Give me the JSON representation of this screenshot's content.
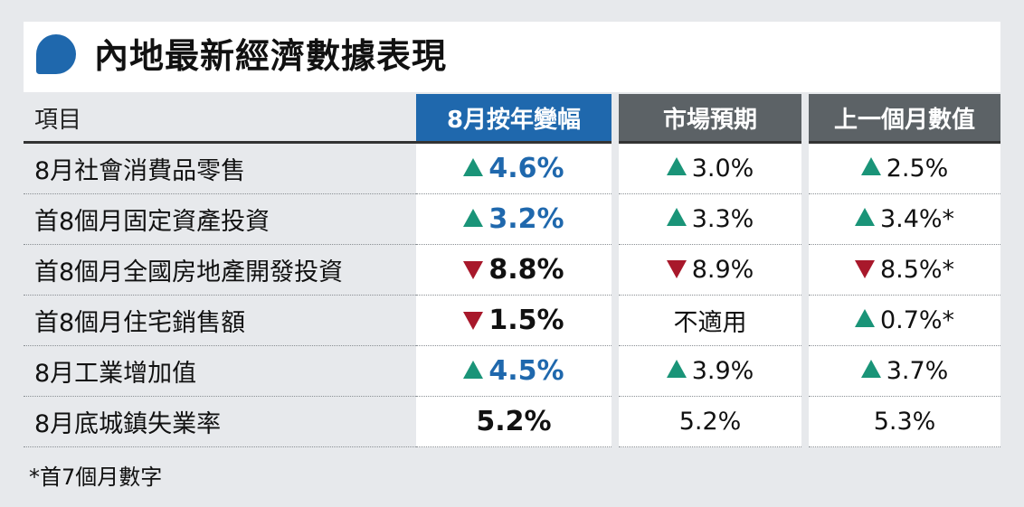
{
  "title": "內地最新經濟數據表現",
  "colors": {
    "accent_blue": "#1f68ad",
    "header_gray": "#5c6266",
    "up_green": "#1a9478",
    "down_red": "#a8182b"
  },
  "headers": {
    "item": "項目",
    "col1": "8月按年變幅",
    "col2": "市場預期",
    "col3": "上一個月數值"
  },
  "rows": [
    {
      "label": "8月社會消費品零售",
      "c1": {
        "dir": "up",
        "text": "4.6%"
      },
      "c2": {
        "dir": "up",
        "text": "3.0%"
      },
      "c3": {
        "dir": "up",
        "text": "2.5%"
      }
    },
    {
      "label": "首8個月固定資產投資",
      "c1": {
        "dir": "up",
        "text": "3.2%"
      },
      "c2": {
        "dir": "up",
        "text": "3.3%"
      },
      "c3": {
        "dir": "up",
        "text": "3.4%*"
      }
    },
    {
      "label": "首8個月全國房地產開發投資",
      "c1": {
        "dir": "down",
        "text": "8.8%"
      },
      "c2": {
        "dir": "down",
        "text": "8.9%"
      },
      "c3": {
        "dir": "down",
        "text": "8.5%*"
      }
    },
    {
      "label": "首8個月住宅銷售額",
      "c1": {
        "dir": "down",
        "text": "1.5%"
      },
      "c2": {
        "dir": "none",
        "text": "不適用"
      },
      "c3": {
        "dir": "up",
        "text": "0.7%*"
      }
    },
    {
      "label": "8月工業增加值",
      "c1": {
        "dir": "up",
        "text": "4.5%"
      },
      "c2": {
        "dir": "up",
        "text": "3.9%"
      },
      "c3": {
        "dir": "up",
        "text": "3.7%"
      }
    },
    {
      "label": "8月底城鎮失業率",
      "c1": {
        "dir": "none",
        "text": "5.2%"
      },
      "c2": {
        "dir": "none",
        "text": "5.2%"
      },
      "c3": {
        "dir": "none",
        "text": "5.3%"
      }
    }
  ],
  "footnote": "*首7個月數字"
}
